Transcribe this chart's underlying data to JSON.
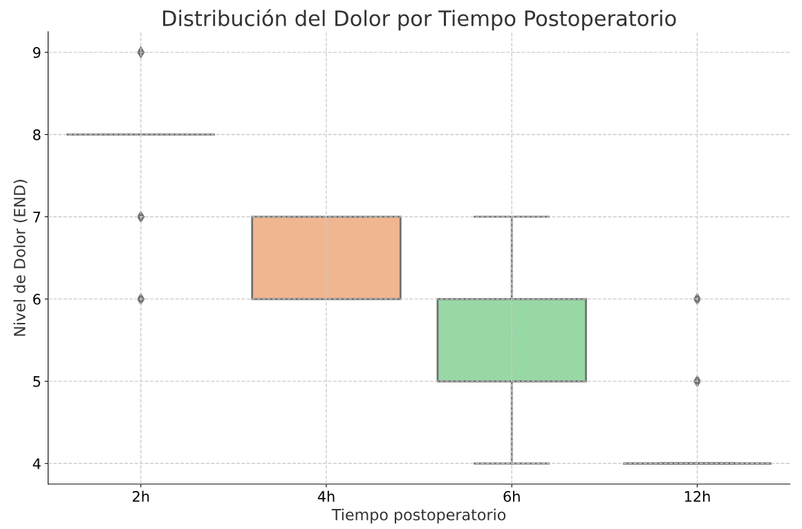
{
  "chart_data": {
    "type": "box",
    "title": "Distribución del Dolor por Tiempo Postoperatorio",
    "xlabel": "Tiempo postoperatorio",
    "ylabel": "Nivel de Dolor (END)",
    "categories": [
      "2h",
      "4h",
      "6h",
      "12h"
    ],
    "colors": [
      null,
      "#f0b690",
      "#97d8a5",
      null
    ],
    "boxes": [
      {
        "low": 8,
        "q1": 8,
        "median": 8,
        "q3": 8,
        "high": 8,
        "outliers": [
          9,
          7,
          6
        ]
      },
      {
        "low": 6,
        "q1": 6,
        "median": 6,
        "q3": 7,
        "high": 7
      },
      {
        "low": 4,
        "q1": 5,
        "median": 5,
        "q3": 6,
        "high": 7
      },
      {
        "low": 4,
        "q1": 4,
        "median": 4,
        "q3": 4,
        "high": 4,
        "outliers": [
          6,
          5
        ]
      }
    ],
    "ylim": [
      3.75,
      9.25
    ],
    "yticks": [
      4,
      5,
      6,
      7,
      8,
      9
    ],
    "grid": true,
    "marker": "diamond"
  }
}
